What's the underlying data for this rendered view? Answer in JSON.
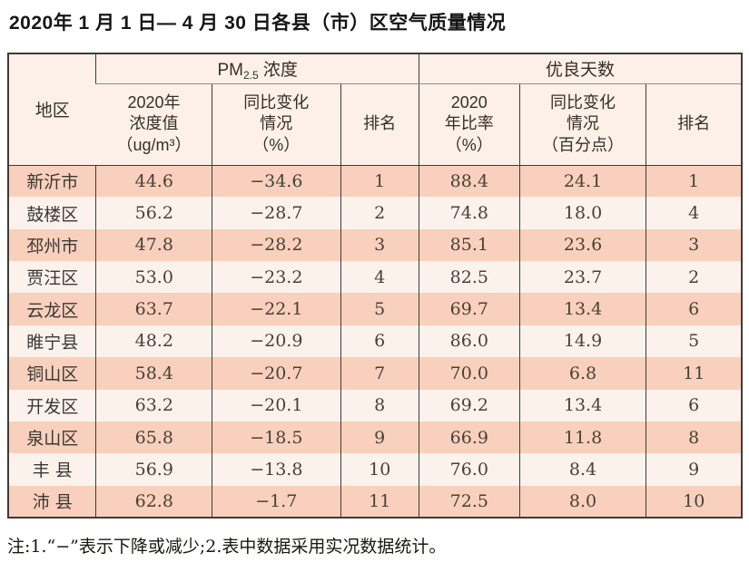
{
  "title": "2020年 1 月 1 日— 4 月 30 日各县（市）区空气质量情况",
  "table": {
    "region_header": "地区",
    "group_pm25": {
      "pm": "PM",
      "sub": "2.5",
      "label": " 浓度"
    },
    "group_days": "优良天数",
    "subheaders": [
      "2020年\n浓度值\n（ug/m³）",
      "同比变化\n情况\n（%）",
      "排名",
      "2020\n年比率\n（%）",
      "同比变化\n情况\n（百分点）",
      "排名"
    ],
    "rows": [
      [
        "新沂市",
        "44.6",
        "−34.6",
        "1",
        "88.4",
        "24.1",
        "1"
      ],
      [
        "鼓楼区",
        "56.2",
        "−28.7",
        "2",
        "74.8",
        "18.0",
        "4"
      ],
      [
        "邳州市",
        "47.8",
        "−28.2",
        "3",
        "85.1",
        "23.6",
        "3"
      ],
      [
        "贾汪区",
        "53.0",
        "−23.2",
        "4",
        "82.5",
        "23.7",
        "2"
      ],
      [
        "云龙区",
        "63.7",
        "−22.1",
        "5",
        "69.7",
        "13.4",
        "6"
      ],
      [
        "睢宁县",
        "48.2",
        "−20.9",
        "6",
        "86.0",
        "14.9",
        "5"
      ],
      [
        "铜山区",
        "58.4",
        "−20.7",
        "7",
        "70.0",
        "6.8",
        "11"
      ],
      [
        "开发区",
        "63.2",
        "−20.1",
        "8",
        "69.2",
        "13.4",
        "6"
      ],
      [
        "泉山区",
        "65.8",
        "−18.5",
        "9",
        "66.9",
        "11.8",
        "8"
      ],
      [
        "丰 县",
        "56.9",
        "−13.8",
        "10",
        "76.0",
        "8.4",
        "9"
      ],
      [
        "沛 县",
        "62.8",
        "−1.7",
        "11",
        "72.5",
        "8.0",
        "10"
      ]
    ]
  },
  "footnote": "注:1.“−”表示下降或减少;2.表中数据采用实况数据统计。",
  "colors": {
    "row_odd": "#f8d0bd",
    "row_even": "#fcf2ec",
    "header_bg": "#fdf0e8",
    "border_dark": "#3f3b37",
    "border_gray": "#908d8a"
  }
}
